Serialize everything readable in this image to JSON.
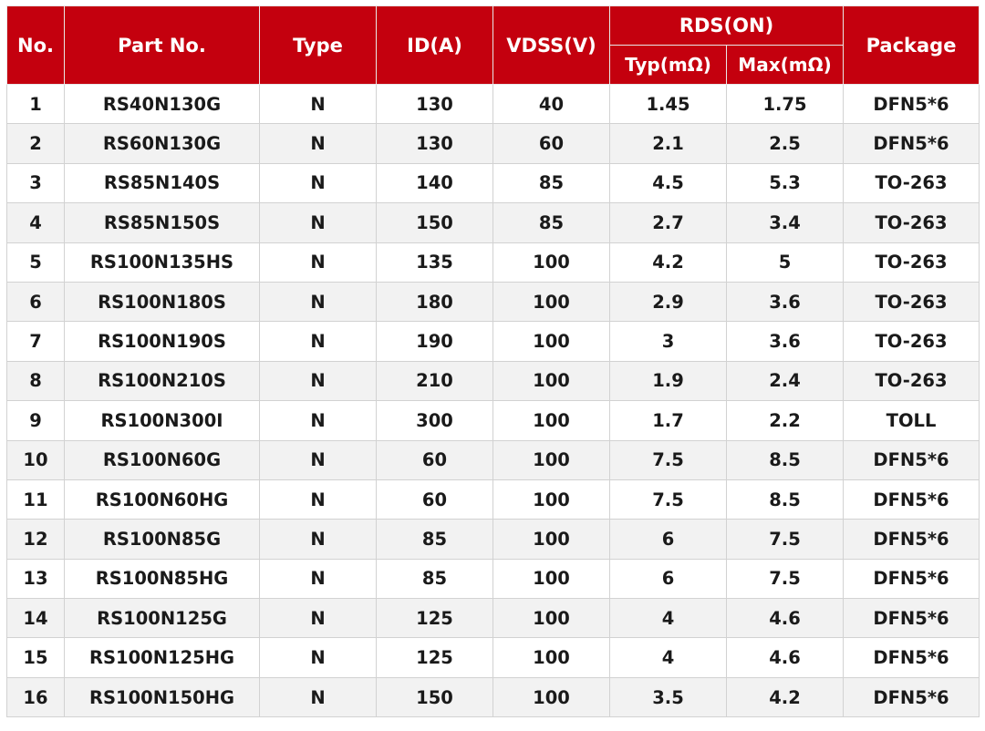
{
  "header": {
    "no": "No.",
    "part_no": "Part No.",
    "type": "Type",
    "id": "ID(A)",
    "vdss": "VDSS(V)",
    "rds_on": "RDS(ON)",
    "typ": "Typ(mΩ)",
    "max": "Max(mΩ)",
    "package": "Package"
  },
  "colors": {
    "header_bg": "#c4000e",
    "header_text": "#ffffff",
    "stripe": "#f2f2f2"
  },
  "rows": [
    [
      "1",
      "RS40N130G",
      "N",
      "130",
      "40",
      "1.45",
      "1.75",
      "DFN5*6"
    ],
    [
      "2",
      "RS60N130G",
      "N",
      "130",
      "60",
      "2.1",
      "2.5",
      "DFN5*6"
    ],
    [
      "3",
      "RS85N140S",
      "N",
      "140",
      "85",
      "4.5",
      "5.3",
      "TO-263"
    ],
    [
      "4",
      "RS85N150S",
      "N",
      "150",
      "85",
      "2.7",
      "3.4",
      "TO-263"
    ],
    [
      "5",
      "RS100N135HS",
      "N",
      "135",
      "100",
      "4.2",
      "5",
      "TO-263"
    ],
    [
      "6",
      "RS100N180S",
      "N",
      "180",
      "100",
      "2.9",
      "3.6",
      "TO-263"
    ],
    [
      "7",
      "RS100N190S",
      "N",
      "190",
      "100",
      "3",
      "3.6",
      "TO-263"
    ],
    [
      "8",
      "RS100N210S",
      "N",
      "210",
      "100",
      "1.9",
      "2.4",
      "TO-263"
    ],
    [
      "9",
      "RS100N300I",
      "N",
      "300",
      "100",
      "1.7",
      "2.2",
      "TOLL"
    ],
    [
      "10",
      "RS100N60G",
      "N",
      "60",
      "100",
      "7.5",
      "8.5",
      "DFN5*6"
    ],
    [
      "11",
      "RS100N60HG",
      "N",
      "60",
      "100",
      "7.5",
      "8.5",
      "DFN5*6"
    ],
    [
      "12",
      "RS100N85G",
      "N",
      "85",
      "100",
      "6",
      "7.5",
      "DFN5*6"
    ],
    [
      "13",
      "RS100N85HG",
      "N",
      "85",
      "100",
      "6",
      "7.5",
      "DFN5*6"
    ],
    [
      "14",
      "RS100N125G",
      "N",
      "125",
      "100",
      "4",
      "4.6",
      "DFN5*6"
    ],
    [
      "15",
      "RS100N125HG",
      "N",
      "125",
      "100",
      "4",
      "4.6",
      "DFN5*6"
    ],
    [
      "16",
      "RS100N150HG",
      "N",
      "150",
      "100",
      "3.5",
      "4.2",
      "DFN5*6"
    ]
  ]
}
